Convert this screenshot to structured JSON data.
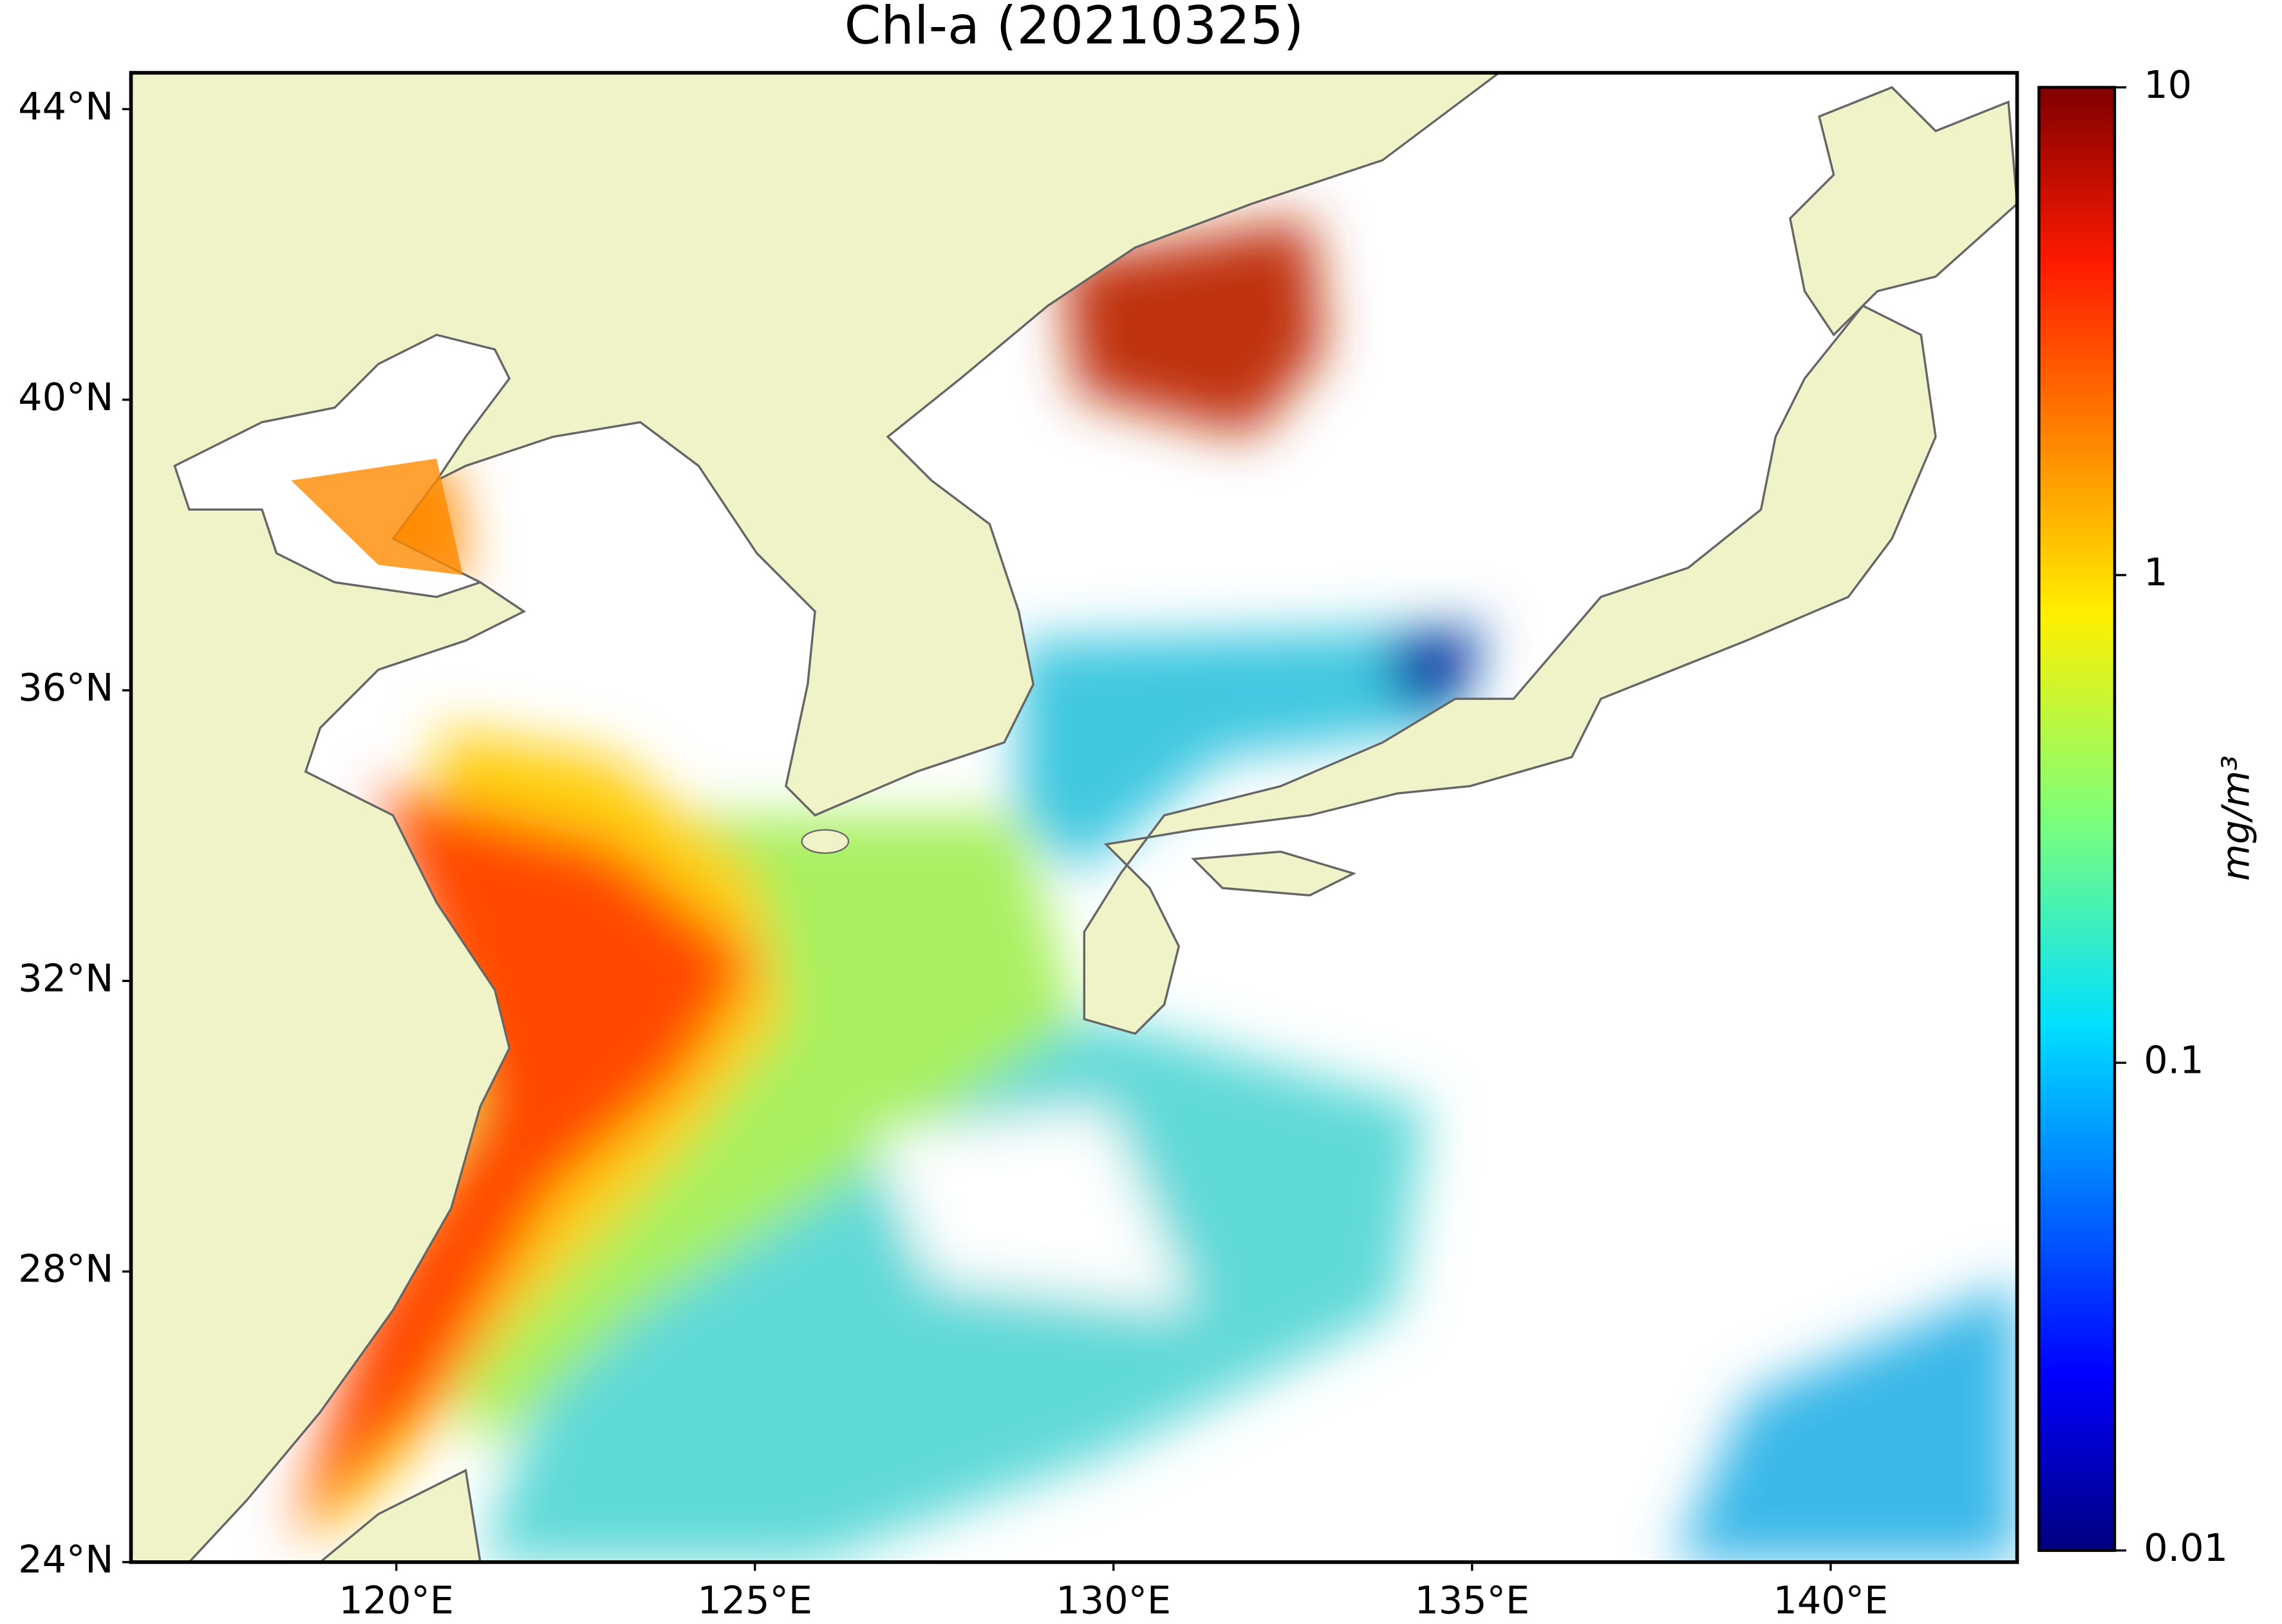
{
  "chart_data": {
    "type": "map",
    "title": "Chl-a (20210325)",
    "xlim": [
      116.3,
      142.6
    ],
    "ylim": [
      24,
      44.5
    ],
    "xticks": [
      {
        "value": 120,
        "label": "120°E"
      },
      {
        "value": 125,
        "label": "125°E"
      },
      {
        "value": 130,
        "label": "130°E"
      },
      {
        "value": 135,
        "label": "135°E"
      },
      {
        "value": 140,
        "label": "140°E"
      }
    ],
    "yticks": [
      {
        "value": 24,
        "label": "24°N"
      },
      {
        "value": 28,
        "label": "28°N"
      },
      {
        "value": 32,
        "label": "32°N"
      },
      {
        "value": 36,
        "label": "36°N"
      },
      {
        "value": 40,
        "label": "40°N"
      },
      {
        "value": 44,
        "label": "44°N"
      }
    ],
    "colorbar": {
      "label": "mg/m³",
      "scale": "log",
      "lim": [
        0.01,
        10
      ],
      "ticks": [
        0.01,
        0.1,
        1,
        10
      ]
    }
  }
}
